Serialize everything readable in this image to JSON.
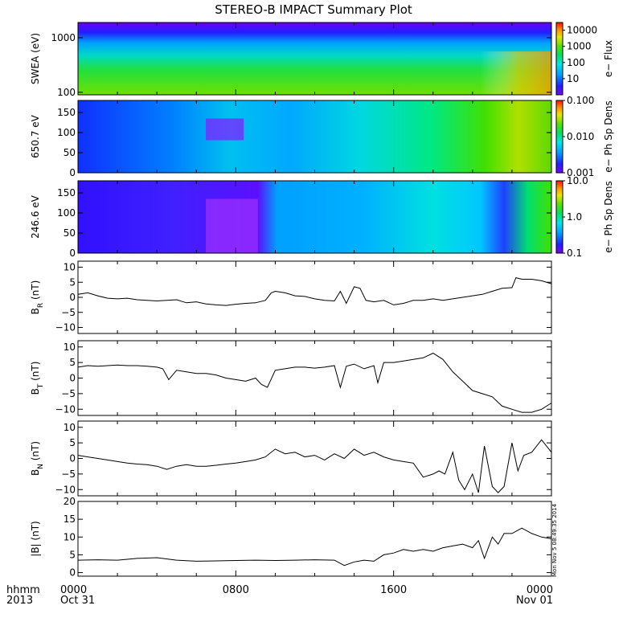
{
  "title": "STEREO-B IMPACT Summary Plot",
  "stamp": "Mon Nov  5 08:49:35 2014",
  "xaxis": {
    "row1_label": "hhmm",
    "row2_label": "2013",
    "ticks": [
      {
        "hour": 0,
        "label": "0000",
        "sub": "Oct 31"
      },
      {
        "hour": 8,
        "label": "0800",
        "sub": ""
      },
      {
        "hour": 16,
        "label": "1600",
        "sub": ""
      },
      {
        "hour": 24,
        "label": "0000",
        "sub": "Nov 01"
      }
    ],
    "range_hours": [
      0,
      24
    ]
  },
  "colors": {
    "line": "#000000",
    "background": "#ffffff"
  },
  "chart_data": [
    {
      "type": "heatmap",
      "ylabel": "SWEA (eV)",
      "yscale": "log",
      "ylim": [
        90,
        1900
      ],
      "yticks": [
        {
          "v": 100,
          "label": "100"
        },
        {
          "v": 1000,
          "label": "1000"
        }
      ],
      "colorbar": {
        "label": "e− Flux",
        "scale": "log",
        "range": [
          1,
          30000
        ],
        "ticks": [
          {
            "v": 10,
            "label": "10"
          },
          {
            "v": 100,
            "label": "100"
          },
          {
            "v": 1000,
            "label": "1000"
          },
          {
            "v": 10000,
            "label": "10000"
          }
        ]
      }
    },
    {
      "type": "heatmap",
      "ylabel": "650.7 eV",
      "yscale": "linear",
      "ylim": [
        0,
        180
      ],
      "yticks": [
        {
          "v": 0,
          "label": "0"
        },
        {
          "v": 50,
          "label": "50"
        },
        {
          "v": 100,
          "label": "100"
        },
        {
          "v": 150,
          "label": "150"
        }
      ],
      "colorbar": {
        "label": "e− Ph Sp Dens",
        "scale": "log",
        "range": [
          0.001,
          0.1
        ],
        "ticks": [
          {
            "v": 0.001,
            "label": "0.001"
          },
          {
            "v": 0.01,
            "label": "0.010"
          },
          {
            "v": 0.1,
            "label": "0.100"
          }
        ]
      }
    },
    {
      "type": "heatmap",
      "ylabel": "246.6 eV",
      "yscale": "linear",
      "ylim": [
        0,
        180
      ],
      "yticks": [
        {
          "v": 0,
          "label": "0"
        },
        {
          "v": 50,
          "label": "50"
        },
        {
          "v": 100,
          "label": "100"
        },
        {
          "v": 150,
          "label": "150"
        }
      ],
      "colorbar": {
        "label": "e− Ph Sp Dens",
        "scale": "log",
        "range": [
          0.1,
          10
        ],
        "ticks": [
          {
            "v": 0.1,
            "label": "0.1"
          },
          {
            "v": 1,
            "label": "1.0"
          },
          {
            "v": 10,
            "label": "10.0"
          }
        ]
      }
    },
    {
      "type": "line",
      "ylabel": "BR (nT)",
      "ylabel_main": "B",
      "ylabel_sub": "R",
      "ylabel_unit": " (nT)",
      "ylim": [
        -12,
        12
      ],
      "yticks": [
        {
          "v": -10,
          "label": "−10"
        },
        {
          "v": -5,
          "label": "−5"
        },
        {
          "v": 0,
          "label": "0"
        },
        {
          "v": 5,
          "label": "5"
        },
        {
          "v": 10,
          "label": "10"
        }
      ],
      "x": [
        0,
        0.5,
        1,
        1.5,
        2,
        2.5,
        3,
        3.5,
        4,
        4.5,
        5,
        5.5,
        6,
        6.5,
        7,
        7.5,
        8,
        8.5,
        9,
        9.5,
        9.8,
        10,
        10.5,
        11,
        11.5,
        12,
        12.5,
        13,
        13.3,
        13.6,
        14,
        14.3,
        14.6,
        15,
        15.5,
        16,
        16.5,
        17,
        17.5,
        18,
        18.5,
        19,
        19.5,
        20,
        20.5,
        21,
        21.5,
        22,
        22.2,
        22.5,
        23,
        23.5,
        24
      ],
      "y": [
        1,
        1.5,
        0.5,
        -0.3,
        -0.5,
        -0.3,
        -0.8,
        -1,
        -1.2,
        -1,
        -0.8,
        -1.8,
        -1.5,
        -2.2,
        -2.5,
        -2.7,
        -2.3,
        -2,
        -1.8,
        -1,
        1.5,
        2,
        1.5,
        0.5,
        0.3,
        -0.5,
        -1,
        -1.2,
        2,
        -2,
        3.5,
        3,
        -1,
        -1.5,
        -1,
        -2.5,
        -2,
        -1,
        -1,
        -0.5,
        -1,
        -0.5,
        0,
        0.5,
        1,
        2,
        3,
        3.2,
        6.5,
        6,
        6,
        5.5,
        4.5
      ]
    },
    {
      "type": "line",
      "ylabel": "BT (nT)",
      "ylabel_main": "B",
      "ylabel_sub": "T",
      "ylabel_unit": " (nT)",
      "ylim": [
        -12,
        12
      ],
      "yticks": [
        {
          "v": -10,
          "label": "−10"
        },
        {
          "v": -5,
          "label": "−5"
        },
        {
          "v": 0,
          "label": "0"
        },
        {
          "v": 5,
          "label": "5"
        },
        {
          "v": 10,
          "label": "10"
        }
      ],
      "x": [
        0,
        0.5,
        1,
        1.5,
        2,
        2.5,
        3,
        3.5,
        4,
        4.3,
        4.6,
        5,
        5.5,
        6,
        6.5,
        7,
        7.5,
        8,
        8.5,
        9,
        9.3,
        9.6,
        10,
        10.5,
        11,
        11.5,
        12,
        12.5,
        13,
        13.3,
        13.6,
        14,
        14.5,
        15,
        15.2,
        15.5,
        16,
        16.5,
        17,
        17.5,
        18,
        18.5,
        19,
        19.5,
        20,
        20.5,
        21,
        21.5,
        22,
        22.5,
        23,
        23.5,
        24
      ],
      "y": [
        3.5,
        4,
        3.8,
        4,
        4.2,
        4,
        4,
        3.8,
        3.5,
        3,
        -0.5,
        2.5,
        2,
        1.5,
        1.5,
        1,
        0,
        -0.5,
        -1,
        0,
        -2,
        -3,
        2.5,
        3,
        3.5,
        3.5,
        3.2,
        3.5,
        4,
        -3,
        3.8,
        4.5,
        3,
        4,
        -1.5,
        5,
        5,
        5.5,
        6,
        6.5,
        8,
        6,
        2,
        -1,
        -4,
        -5,
        -6,
        -9,
        -10,
        -11,
        -11,
        -10,
        -8
      ]
    },
    {
      "type": "line",
      "ylabel": "BN (nT)",
      "ylabel_main": "B",
      "ylabel_sub": "N",
      "ylabel_unit": " (nT)",
      "ylim": [
        -12,
        12
      ],
      "yticks": [
        {
          "v": -10,
          "label": "−10"
        },
        {
          "v": -5,
          "label": "−5"
        },
        {
          "v": 0,
          "label": "0"
        },
        {
          "v": 5,
          "label": "5"
        },
        {
          "v": 10,
          "label": "10"
        }
      ],
      "x": [
        0,
        0.5,
        1,
        1.5,
        2,
        2.5,
        3,
        3.5,
        4,
        4.5,
        5,
        5.5,
        6,
        6.5,
        7,
        7.5,
        8,
        8.5,
        9,
        9.5,
        10,
        10.5,
        11,
        11.5,
        12,
        12.5,
        13,
        13.5,
        14,
        14.5,
        15,
        15.5,
        16,
        16.5,
        17,
        17.5,
        18,
        18.3,
        18.6,
        19,
        19.3,
        19.6,
        20,
        20.3,
        20.6,
        21,
        21.3,
        21.6,
        22,
        22.3,
        22.6,
        23,
        23.5,
        24
      ],
      "y": [
        1,
        0.5,
        0,
        -0.5,
        -1,
        -1.5,
        -1.8,
        -2,
        -2.5,
        -3.5,
        -2.5,
        -2,
        -2.5,
        -2.5,
        -2.2,
        -1.8,
        -1.5,
        -1,
        -0.5,
        0.5,
        3,
        1.5,
        2,
        0.5,
        1,
        -0.5,
        1.5,
        0,
        3,
        1,
        2,
        0.5,
        -0.5,
        -1,
        -1.5,
        -6,
        -5,
        -4,
        -5,
        2,
        -7,
        -10,
        -5,
        -11,
        4,
        -9,
        -11,
        -9,
        5,
        -4,
        1,
        2,
        6,
        2
      ]
    },
    {
      "type": "line",
      "ylabel": "|B| (nT)",
      "ylabel_main": "|B|",
      "ylabel_sub": "",
      "ylabel_unit": " (nT)",
      "ylim": [
        -1,
        20
      ],
      "yticks": [
        {
          "v": 0,
          "label": "0"
        },
        {
          "v": 5,
          "label": "5"
        },
        {
          "v": 10,
          "label": "10"
        },
        {
          "v": 15,
          "label": "15"
        },
        {
          "v": 20,
          "label": "20"
        }
      ],
      "x": [
        0,
        1,
        2,
        3,
        4,
        5,
        6,
        7,
        8,
        9,
        10,
        11,
        12,
        13,
        13.5,
        14,
        14.5,
        15,
        15.5,
        16,
        16.5,
        17,
        17.5,
        18,
        18.5,
        19,
        19.5,
        20,
        20.3,
        20.6,
        21,
        21.3,
        21.6,
        22,
        22.5,
        23,
        23.5,
        24
      ],
      "y": [
        3.5,
        3.6,
        3.5,
        4,
        4.2,
        3.5,
        3.2,
        3.3,
        3.4,
        3.5,
        3.4,
        3.5,
        3.6,
        3.5,
        2,
        3,
        3.5,
        3.2,
        5,
        5.5,
        6.5,
        6,
        6.5,
        6,
        7,
        7.5,
        8,
        7,
        9,
        4,
        10,
        8,
        11,
        11,
        12.5,
        11,
        10,
        9.5
      ]
    }
  ]
}
